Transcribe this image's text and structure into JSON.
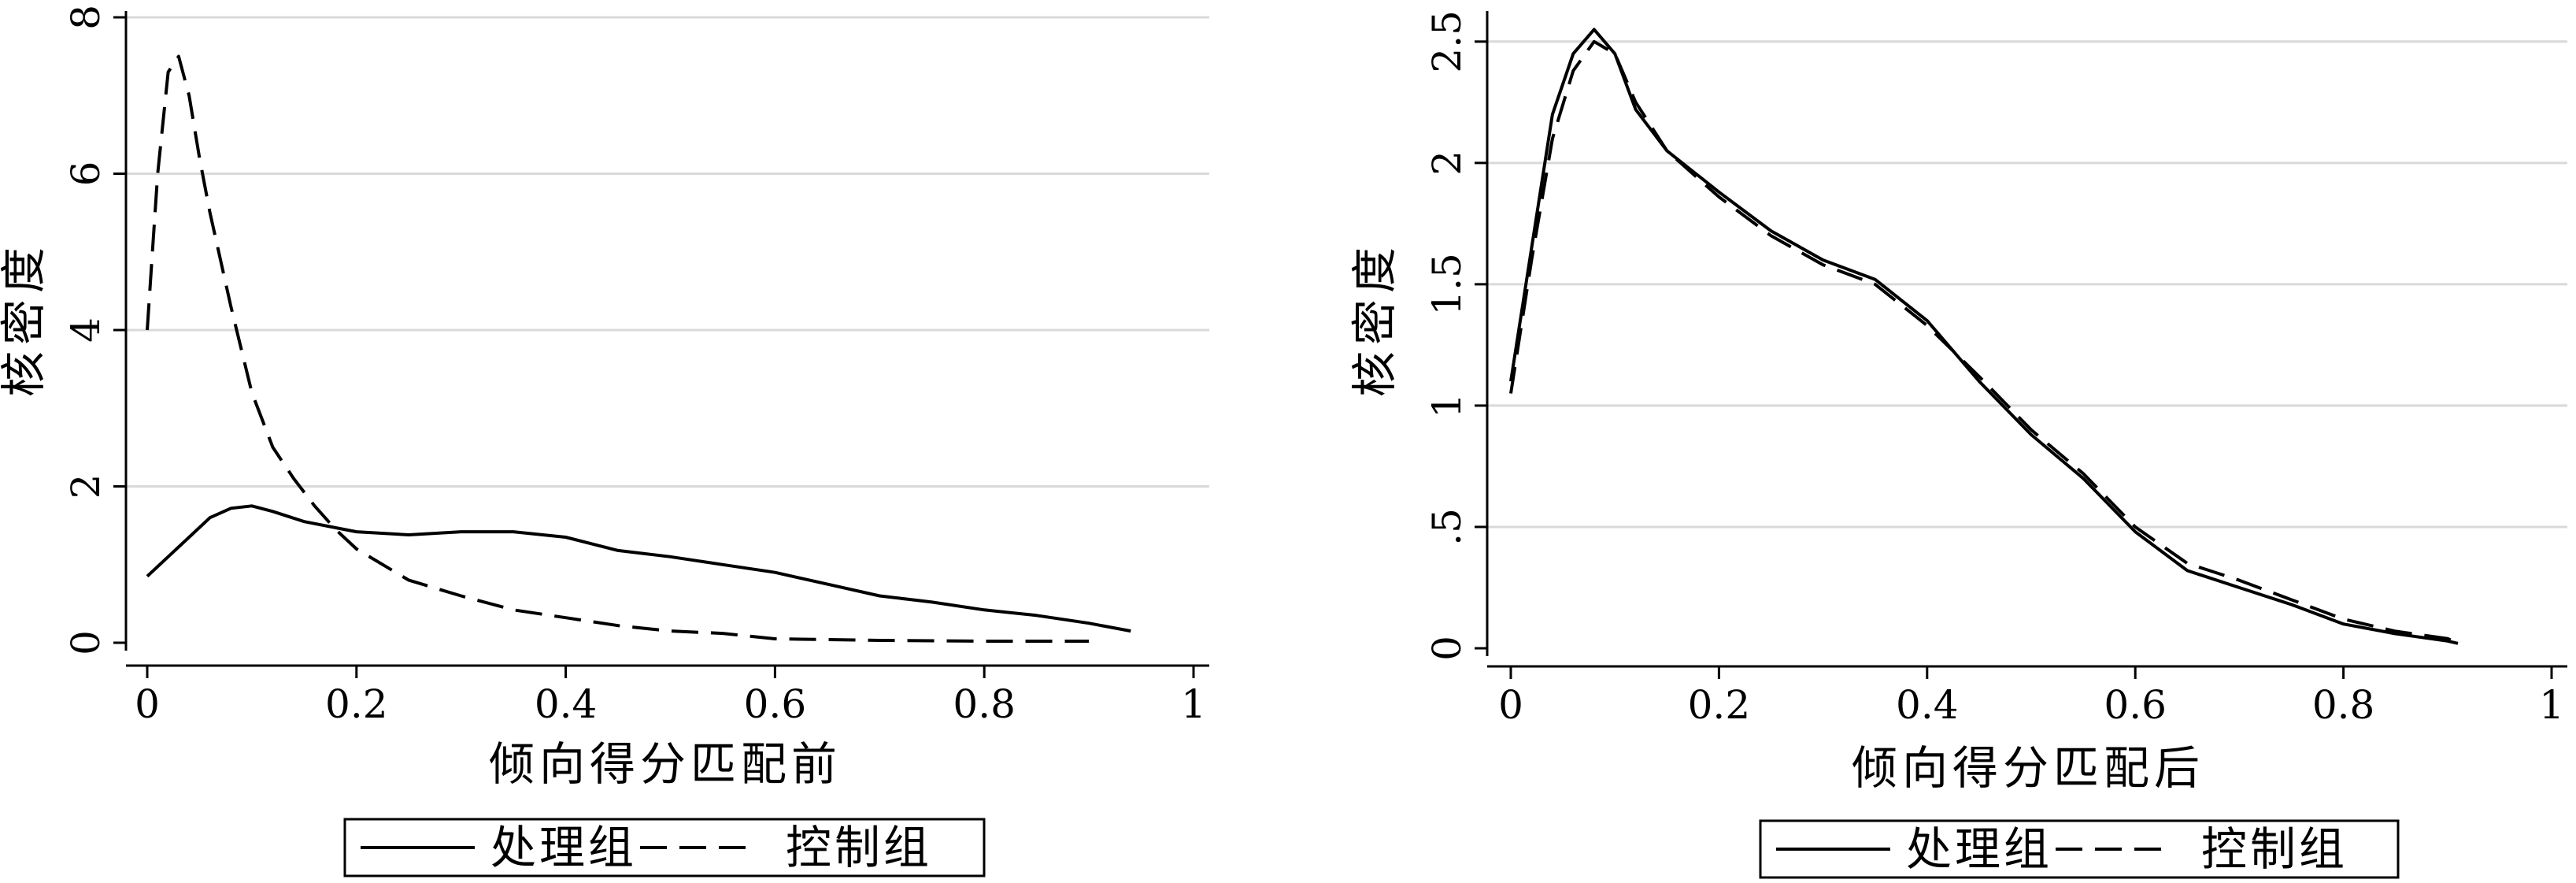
{
  "chart_data": [
    {
      "type": "line",
      "title": "",
      "xlabel": "倾向得分匹配前",
      "ylabel": "核密度",
      "xlim": [
        0,
        1
      ],
      "ylim": [
        0,
        8
      ],
      "xticks": [
        "0",
        "0.2",
        "0.4",
        "0.6",
        "0.8",
        "1"
      ],
      "xtick_values": [
        0,
        0.2,
        0.4,
        0.6,
        0.8,
        1
      ],
      "yticks": [
        "0",
        "2",
        "4",
        "6",
        "8"
      ],
      "ytick_values": [
        0,
        2,
        4,
        6,
        8
      ],
      "grid": true,
      "legend_position": "bottom",
      "series": [
        {
          "name": "处理组",
          "style": "solid",
          "x": [
            0,
            0.02,
            0.04,
            0.06,
            0.08,
            0.1,
            0.12,
            0.15,
            0.2,
            0.25,
            0.3,
            0.35,
            0.4,
            0.45,
            0.5,
            0.55,
            0.6,
            0.65,
            0.7,
            0.75,
            0.8,
            0.85,
            0.9,
            0.94
          ],
          "y": [
            0.85,
            1.1,
            1.35,
            1.6,
            1.72,
            1.75,
            1.68,
            1.55,
            1.42,
            1.38,
            1.42,
            1.42,
            1.35,
            1.18,
            1.1,
            1.0,
            0.9,
            0.75,
            0.6,
            0.52,
            0.42,
            0.35,
            0.25,
            0.15
          ]
        },
        {
          "name": "控制组",
          "style": "dashed",
          "x": [
            0,
            0.005,
            0.01,
            0.02,
            0.03,
            0.04,
            0.05,
            0.06,
            0.08,
            0.1,
            0.12,
            0.14,
            0.16,
            0.18,
            0.2,
            0.25,
            0.3,
            0.35,
            0.4,
            0.45,
            0.5,
            0.55,
            0.6,
            0.7,
            0.8,
            0.9
          ],
          "y": [
            4.0,
            5.0,
            6.0,
            7.3,
            7.5,
            7.0,
            6.2,
            5.5,
            4.3,
            3.2,
            2.5,
            2.1,
            1.75,
            1.45,
            1.2,
            0.8,
            0.6,
            0.42,
            0.32,
            0.22,
            0.15,
            0.12,
            0.05,
            0.03,
            0.02,
            0.02
          ]
        }
      ]
    },
    {
      "type": "line",
      "title": "",
      "xlabel": "倾向得分匹配后",
      "ylabel": "核密度",
      "xlim": [
        0,
        1
      ],
      "ylim": [
        0,
        2.6
      ],
      "xticks": [
        "0",
        "0.2",
        "0.4",
        "0.6",
        "0.8",
        "1"
      ],
      "xtick_values": [
        0,
        0.2,
        0.4,
        0.6,
        0.8,
        1
      ],
      "yticks": [
        "0",
        ".5",
        "1",
        "1.5",
        "2",
        "2.5"
      ],
      "ytick_values": [
        0,
        0.5,
        1,
        1.5,
        2,
        2.5
      ],
      "grid": true,
      "legend_position": "bottom",
      "series": [
        {
          "name": "处理组",
          "style": "solid",
          "x": [
            0,
            0.02,
            0.04,
            0.06,
            0.08,
            0.1,
            0.12,
            0.15,
            0.2,
            0.25,
            0.3,
            0.35,
            0.4,
            0.45,
            0.5,
            0.55,
            0.6,
            0.65,
            0.7,
            0.75,
            0.8,
            0.85,
            0.9,
            0.91
          ],
          "y": [
            1.1,
            1.65,
            2.2,
            2.45,
            2.55,
            2.45,
            2.22,
            2.05,
            1.88,
            1.72,
            1.6,
            1.52,
            1.35,
            1.1,
            0.88,
            0.7,
            0.48,
            0.32,
            0.25,
            0.18,
            0.1,
            0.06,
            0.03,
            0.02
          ]
        },
        {
          "name": "控制组",
          "style": "dashed",
          "x": [
            0,
            0.02,
            0.04,
            0.06,
            0.08,
            0.1,
            0.12,
            0.15,
            0.2,
            0.25,
            0.3,
            0.35,
            0.4,
            0.45,
            0.5,
            0.55,
            0.6,
            0.65,
            0.7,
            0.75,
            0.8,
            0.85,
            0.9,
            0.91
          ],
          "y": [
            1.05,
            1.6,
            2.1,
            2.38,
            2.5,
            2.45,
            2.25,
            2.05,
            1.86,
            1.7,
            1.58,
            1.5,
            1.33,
            1.12,
            0.9,
            0.72,
            0.5,
            0.35,
            0.28,
            0.2,
            0.12,
            0.07,
            0.04,
            0.02
          ]
        }
      ]
    }
  ],
  "colors": {
    "line": "#000000",
    "grid": "#d9d9d9"
  }
}
